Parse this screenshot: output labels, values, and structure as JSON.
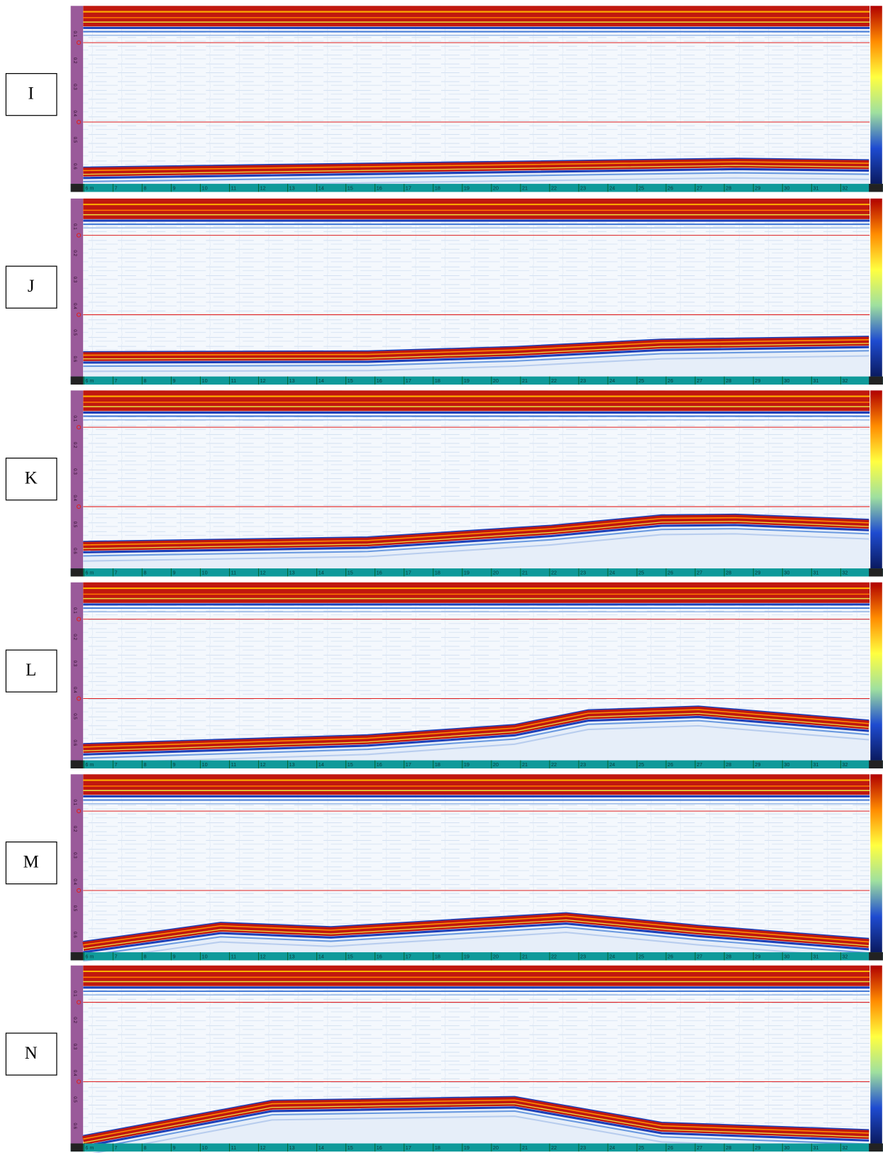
{
  "panels": [
    {
      "label": "I"
    },
    {
      "label": "J"
    },
    {
      "label": "K"
    },
    {
      "label": "L"
    },
    {
      "label": "M"
    },
    {
      "label": "N"
    }
  ],
  "distance_labels": [
    "6 m",
    "7",
    "8",
    "9",
    "10",
    "11",
    "12",
    "13",
    "14",
    "15",
    "16",
    "17",
    "18",
    "19",
    "20",
    "21",
    "22",
    "23",
    "24",
    "25",
    "26",
    "27",
    "28",
    "29",
    "30",
    "31",
    "32"
  ],
  "depth_labels": [
    "0.1",
    "0.2",
    "0.3",
    "0.4",
    "0.5",
    "0.6"
  ]
}
